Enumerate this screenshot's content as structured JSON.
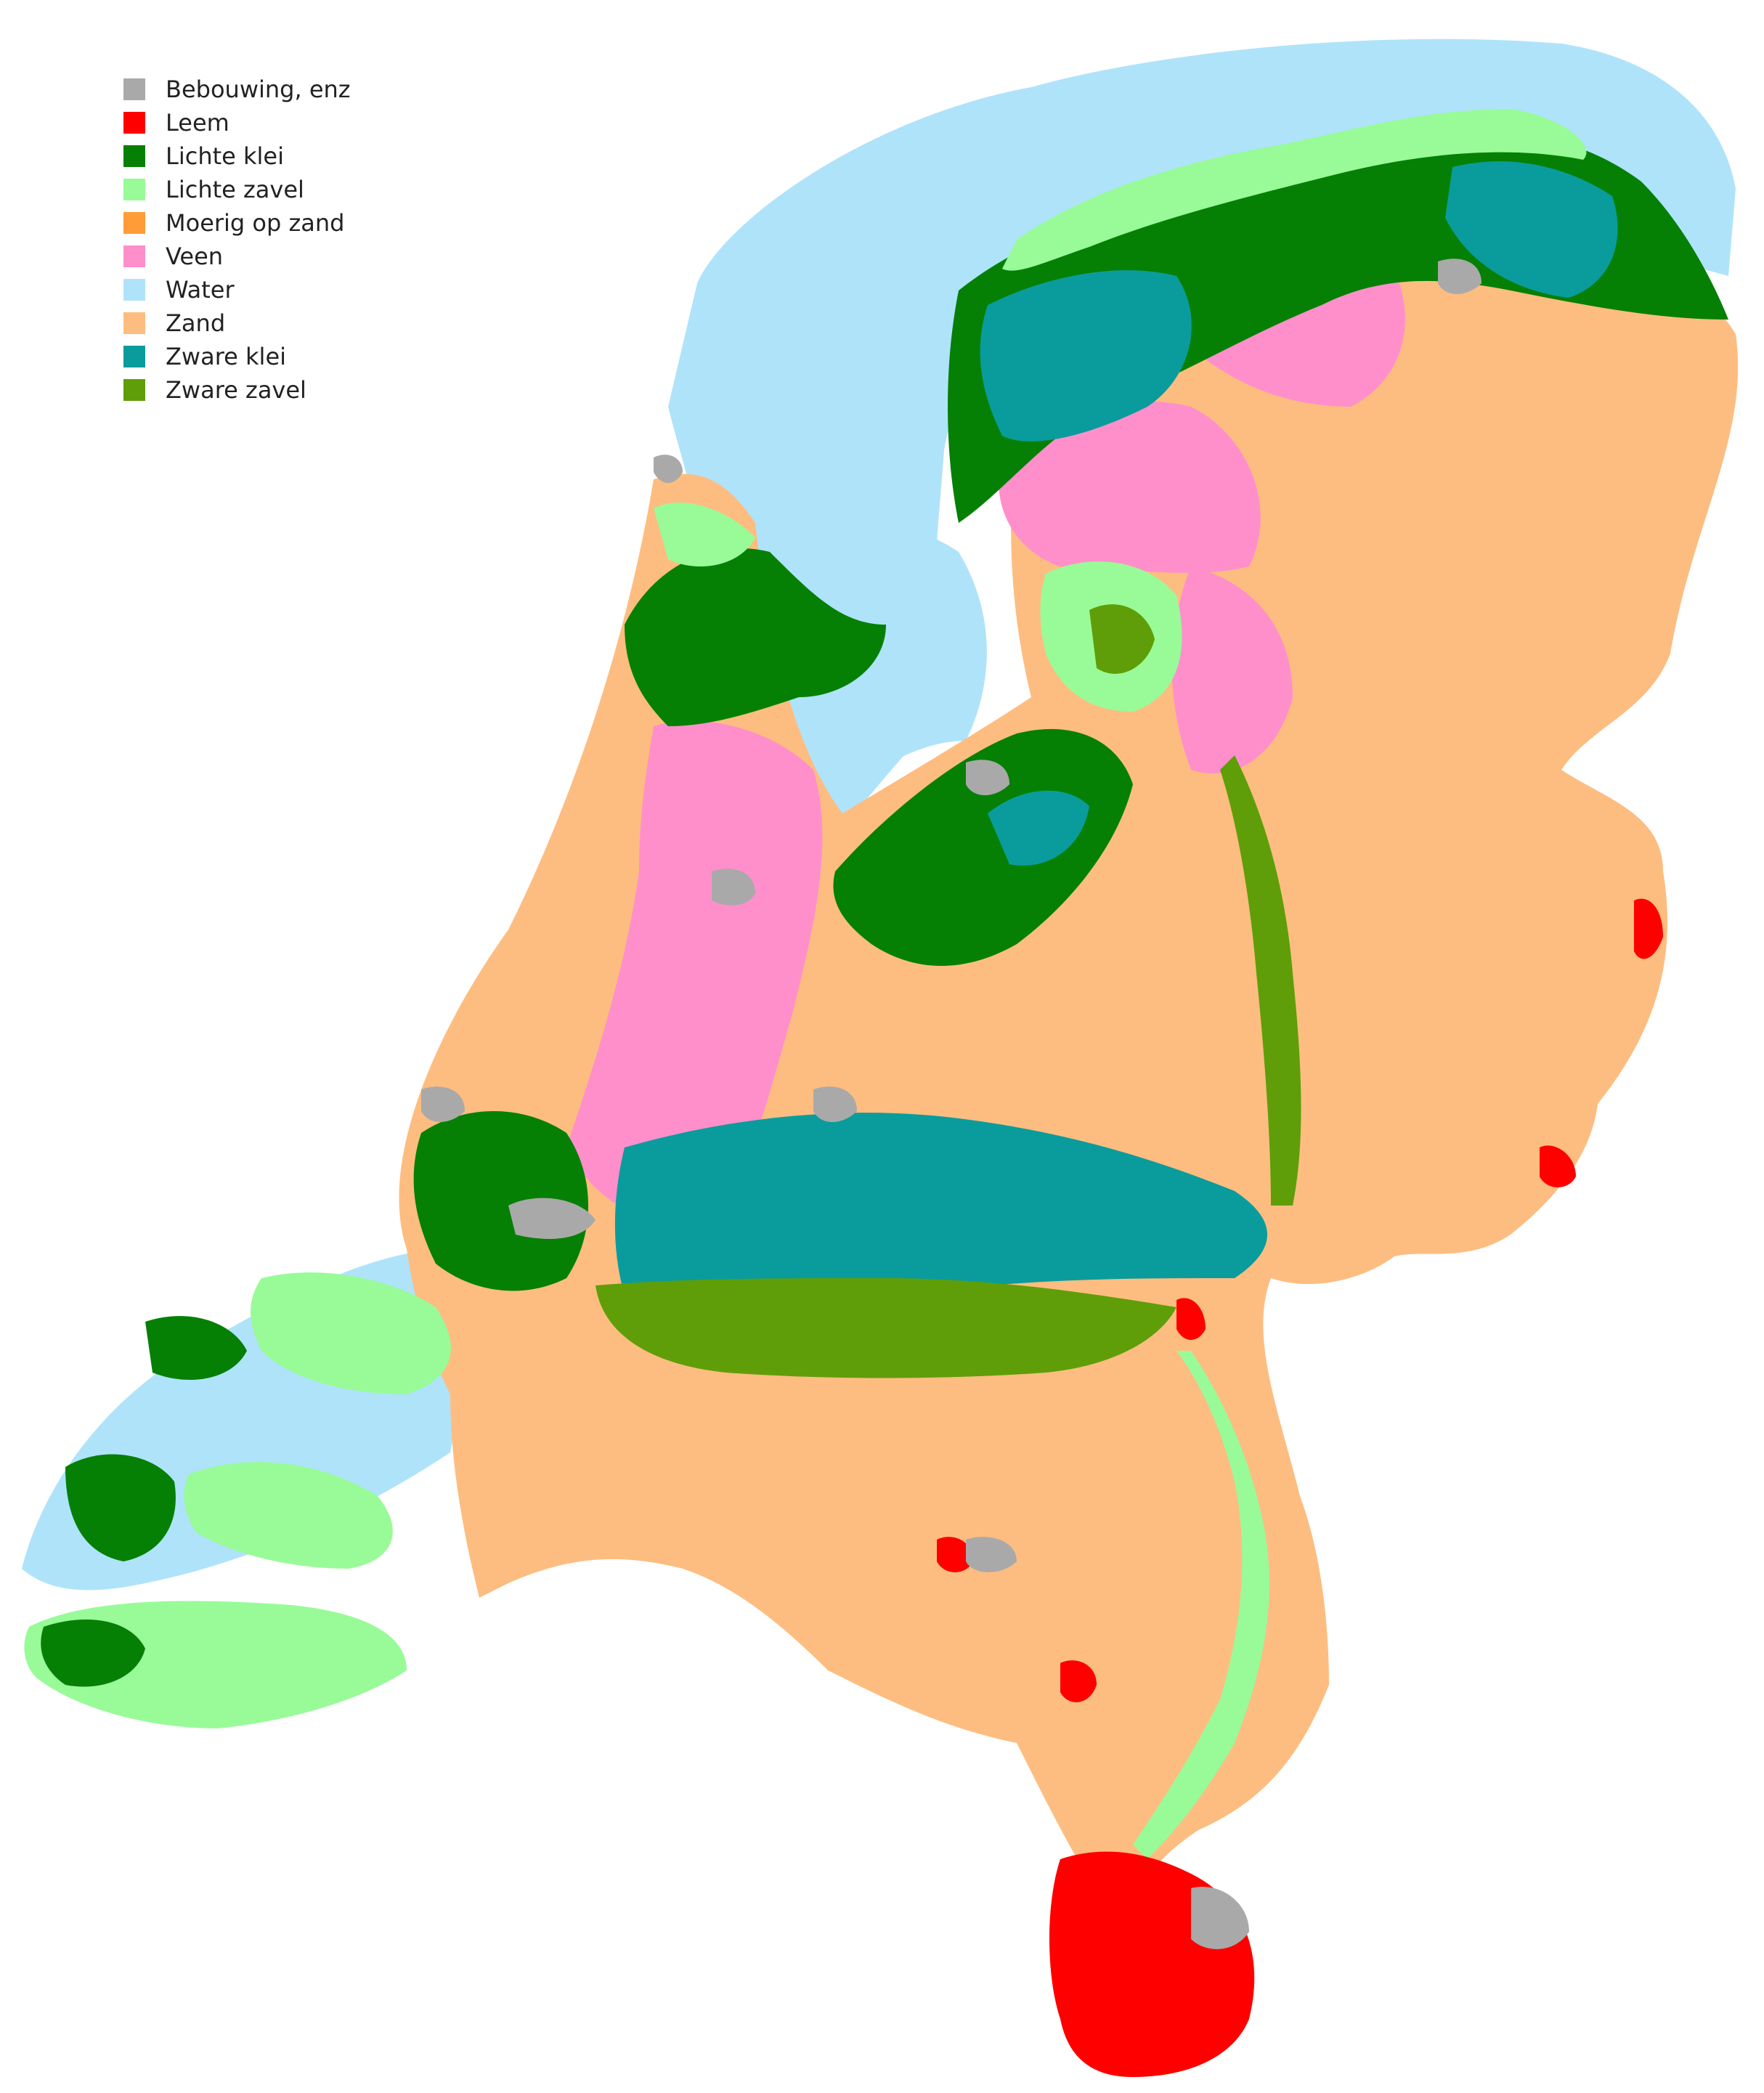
{
  "legend": {
    "items": [
      {
        "label": "Bebouwing, enz",
        "color": "#a9a9a9"
      },
      {
        "label": "Leem",
        "color": "#ff0000"
      },
      {
        "label": "Lichte klei",
        "color": "#058005"
      },
      {
        "label": "Lichte zavel",
        "color": "#98fb98"
      },
      {
        "label": "Moerig op zand",
        "color": "#ff9c38"
      },
      {
        "label": "Veen",
        "color": "#ff8fcb"
      },
      {
        "label": "Water",
        "color": "#afe3fa"
      },
      {
        "label": "Zand",
        "color": "#fdbd80"
      },
      {
        "label": "Zware klei",
        "color": "#0a9c9c"
      },
      {
        "label": "Zware zavel",
        "color": "#5f9e08"
      }
    ]
  }
}
